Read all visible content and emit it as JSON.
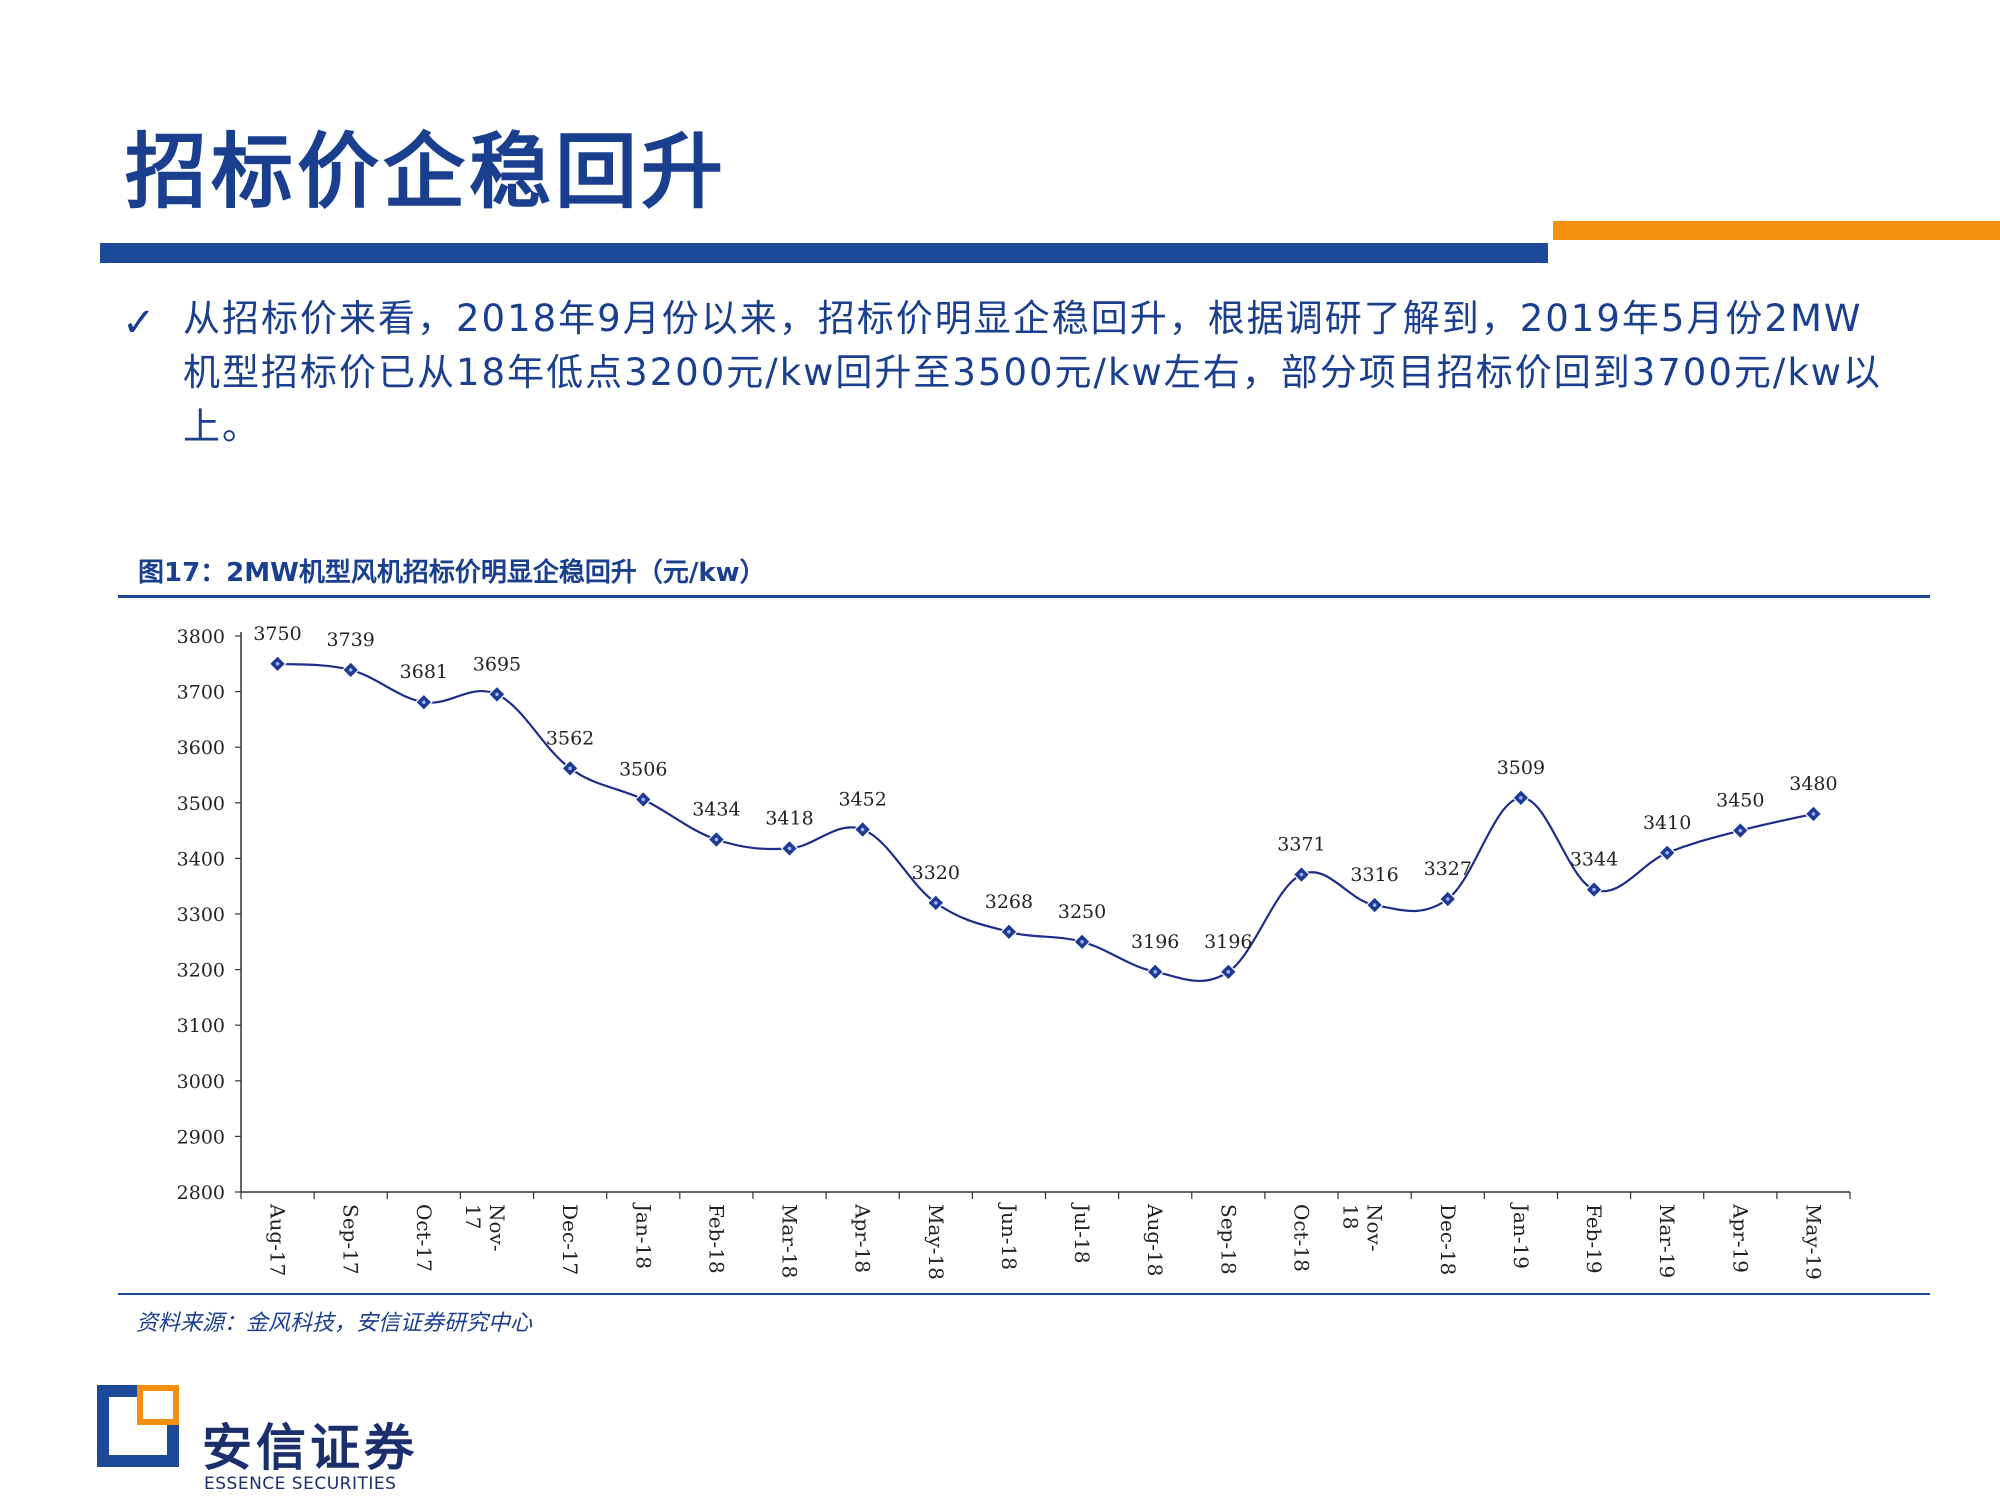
{
  "header": {
    "title": "招标价企稳回升"
  },
  "bullet_point": {
    "icon": "check-icon",
    "text": "从招标价来看，2018年9月份以来，招标价明显企稳回升，根据调研了解到，2019年5月份2MW机型招标价已从18年低点3200元/kw回升至3500元/kw左右，部分项目招标价回到3700元/kw以上。"
  },
  "figure": {
    "title": "图17：2MW机型风机招标价明显企稳回升（元/kw）",
    "source": "资料来源：金风科技，安信证券研究中心"
  },
  "chart_data": {
    "type": "line",
    "categories": [
      "Aug-17",
      "Sep-17",
      "Oct-17",
      "Nov-17",
      "Dec-17",
      "Jan-18",
      "Feb-18",
      "Mar-18",
      "Apr-18",
      "May-18",
      "Jun-18",
      "Jul-18",
      "Aug-18",
      "Sep-18",
      "Oct-18",
      "Nov-18",
      "Dec-18",
      "Jan-19",
      "Feb-19",
      "Mar-19",
      "Apr-19",
      "May-19"
    ],
    "category_label_lines": [
      [
        "Aug-17"
      ],
      [
        "Sep-17"
      ],
      [
        "Oct-17"
      ],
      [
        "Nov-",
        "17"
      ],
      [
        "Dec-17"
      ],
      [
        "Jan-18"
      ],
      [
        "Feb-18"
      ],
      [
        "Mar-18"
      ],
      [
        "Apr-18"
      ],
      [
        "May-18"
      ],
      [
        "Jun-18"
      ],
      [
        "Jul-18"
      ],
      [
        "Aug-18"
      ],
      [
        "Sep-18"
      ],
      [
        "Oct-18"
      ],
      [
        "Nov-",
        "18"
      ],
      [
        "Dec-18"
      ],
      [
        "Jan-19"
      ],
      [
        "Feb-19"
      ],
      [
        "Mar-19"
      ],
      [
        "Apr-19"
      ],
      [
        "May-19"
      ]
    ],
    "values": [
      3750,
      3739,
      3681,
      3695,
      3562,
      3506,
      3434,
      3418,
      3452,
      3320,
      3268,
      3250,
      3196,
      3196,
      3371,
      3316,
      3327,
      3509,
      3344,
      3410,
      3450,
      3480
    ],
    "ylim": [
      2800,
      3800
    ],
    "yticks": [
      2800,
      2900,
      3000,
      3100,
      3200,
      3300,
      3400,
      3500,
      3600,
      3700,
      3800
    ],
    "data_labels": true,
    "line_color": "#1f2d8a",
    "marker_color": "#1f3a93"
  },
  "brand": {
    "name_cn": "安信证券",
    "name_en": "ESSENCE SECURITIES",
    "color_blue": "#1d4a98",
    "color_orange": "#f4900c"
  }
}
